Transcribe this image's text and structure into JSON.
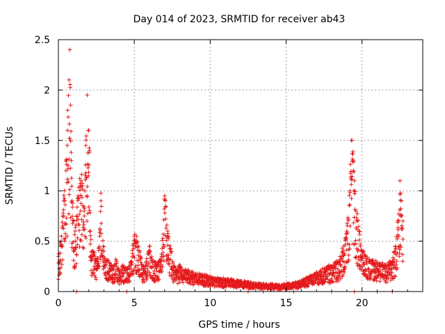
{
  "chart_data": {
    "type": "scatter",
    "title": "Day 014 of 2023, SRMTID for receiver ab43",
    "xlabel": "GPS time / hours",
    "ylabel": "SRMTID / TECUs",
    "xlim": [
      0,
      24
    ],
    "ylim": [
      0,
      2.5
    ],
    "xticks": [
      0,
      5,
      10,
      15,
      20
    ],
    "yticks": [
      0,
      0.5,
      1,
      1.5,
      2,
      2.5
    ],
    "xtick_labels": [
      "0",
      "5",
      "10",
      "15",
      "20"
    ],
    "ytick_labels": [
      "0",
      "0.5",
      "1",
      "1.5",
      "2",
      "2.5"
    ],
    "grid": true,
    "marker": "+",
    "series": [
      {
        "name": "SRMTID",
        "color": "#e41a1c",
        "envelope_description": "dense scatter, values read approximately from the plot",
        "x": [
          0.0,
          0.2,
          0.35,
          0.5,
          0.6,
          0.7,
          0.75,
          0.8,
          0.85,
          0.9,
          1.0,
          1.1,
          1.2,
          1.3,
          1.5,
          1.7,
          1.8,
          1.9,
          2.0,
          2.05,
          2.1,
          2.2,
          2.4,
          2.6,
          2.8,
          3.0,
          3.2,
          3.4,
          3.6,
          3.8,
          4.0,
          4.2,
          4.5,
          4.8,
          5.0,
          5.2,
          5.4,
          5.6,
          5.8,
          6.0,
          6.2,
          6.5,
          6.8,
          7.0,
          7.2,
          7.4,
          7.6,
          7.8,
          8.0,
          8.5,
          9.0,
          9.5,
          10.0,
          10.5,
          11.0,
          11.5,
          12.0,
          12.5,
          13.0,
          13.5,
          14.0,
          14.5,
          15.0,
          15.5,
          16.0,
          16.5,
          17.0,
          17.5,
          18.0,
          18.5,
          18.8,
          19.0,
          19.2,
          19.3,
          19.4,
          19.5,
          19.6,
          19.8,
          20.0,
          20.2,
          20.5,
          21.0,
          21.5,
          22.0,
          22.2,
          22.4,
          22.5,
          22.6,
          22.7
        ],
        "y": [
          0.35,
          0.55,
          0.9,
          1.2,
          1.6,
          2.1,
          2.4,
          1.85,
          1.3,
          0.9,
          0.7,
          0.6,
          0.75,
          0.95,
          1.1,
          0.8,
          1.45,
          1.95,
          1.6,
          1.4,
          0.6,
          0.4,
          0.35,
          0.3,
          0.9,
          0.4,
          0.3,
          0.28,
          0.22,
          0.3,
          0.2,
          0.25,
          0.22,
          0.3,
          0.55,
          0.5,
          0.35,
          0.25,
          0.3,
          0.45,
          0.3,
          0.25,
          0.35,
          0.95,
          0.6,
          0.4,
          0.25,
          0.2,
          0.25,
          0.2,
          0.17,
          0.16,
          0.14,
          0.13,
          0.12,
          0.11,
          0.1,
          0.09,
          0.08,
          0.07,
          0.07,
          0.06,
          0.07,
          0.08,
          0.1,
          0.14,
          0.18,
          0.22,
          0.25,
          0.3,
          0.45,
          0.6,
          1.0,
          1.5,
          1.3,
          1.1,
          0.8,
          0.6,
          0.4,
          0.35,
          0.3,
          0.28,
          0.25,
          0.3,
          0.45,
          0.7,
          1.1,
          0.9,
          0.7
        ]
      }
    ],
    "zero_points_x": [
      1.2,
      4.5,
      12.5,
      13.5,
      15.5,
      18.0,
      19.5,
      21.0,
      22.0
    ]
  }
}
